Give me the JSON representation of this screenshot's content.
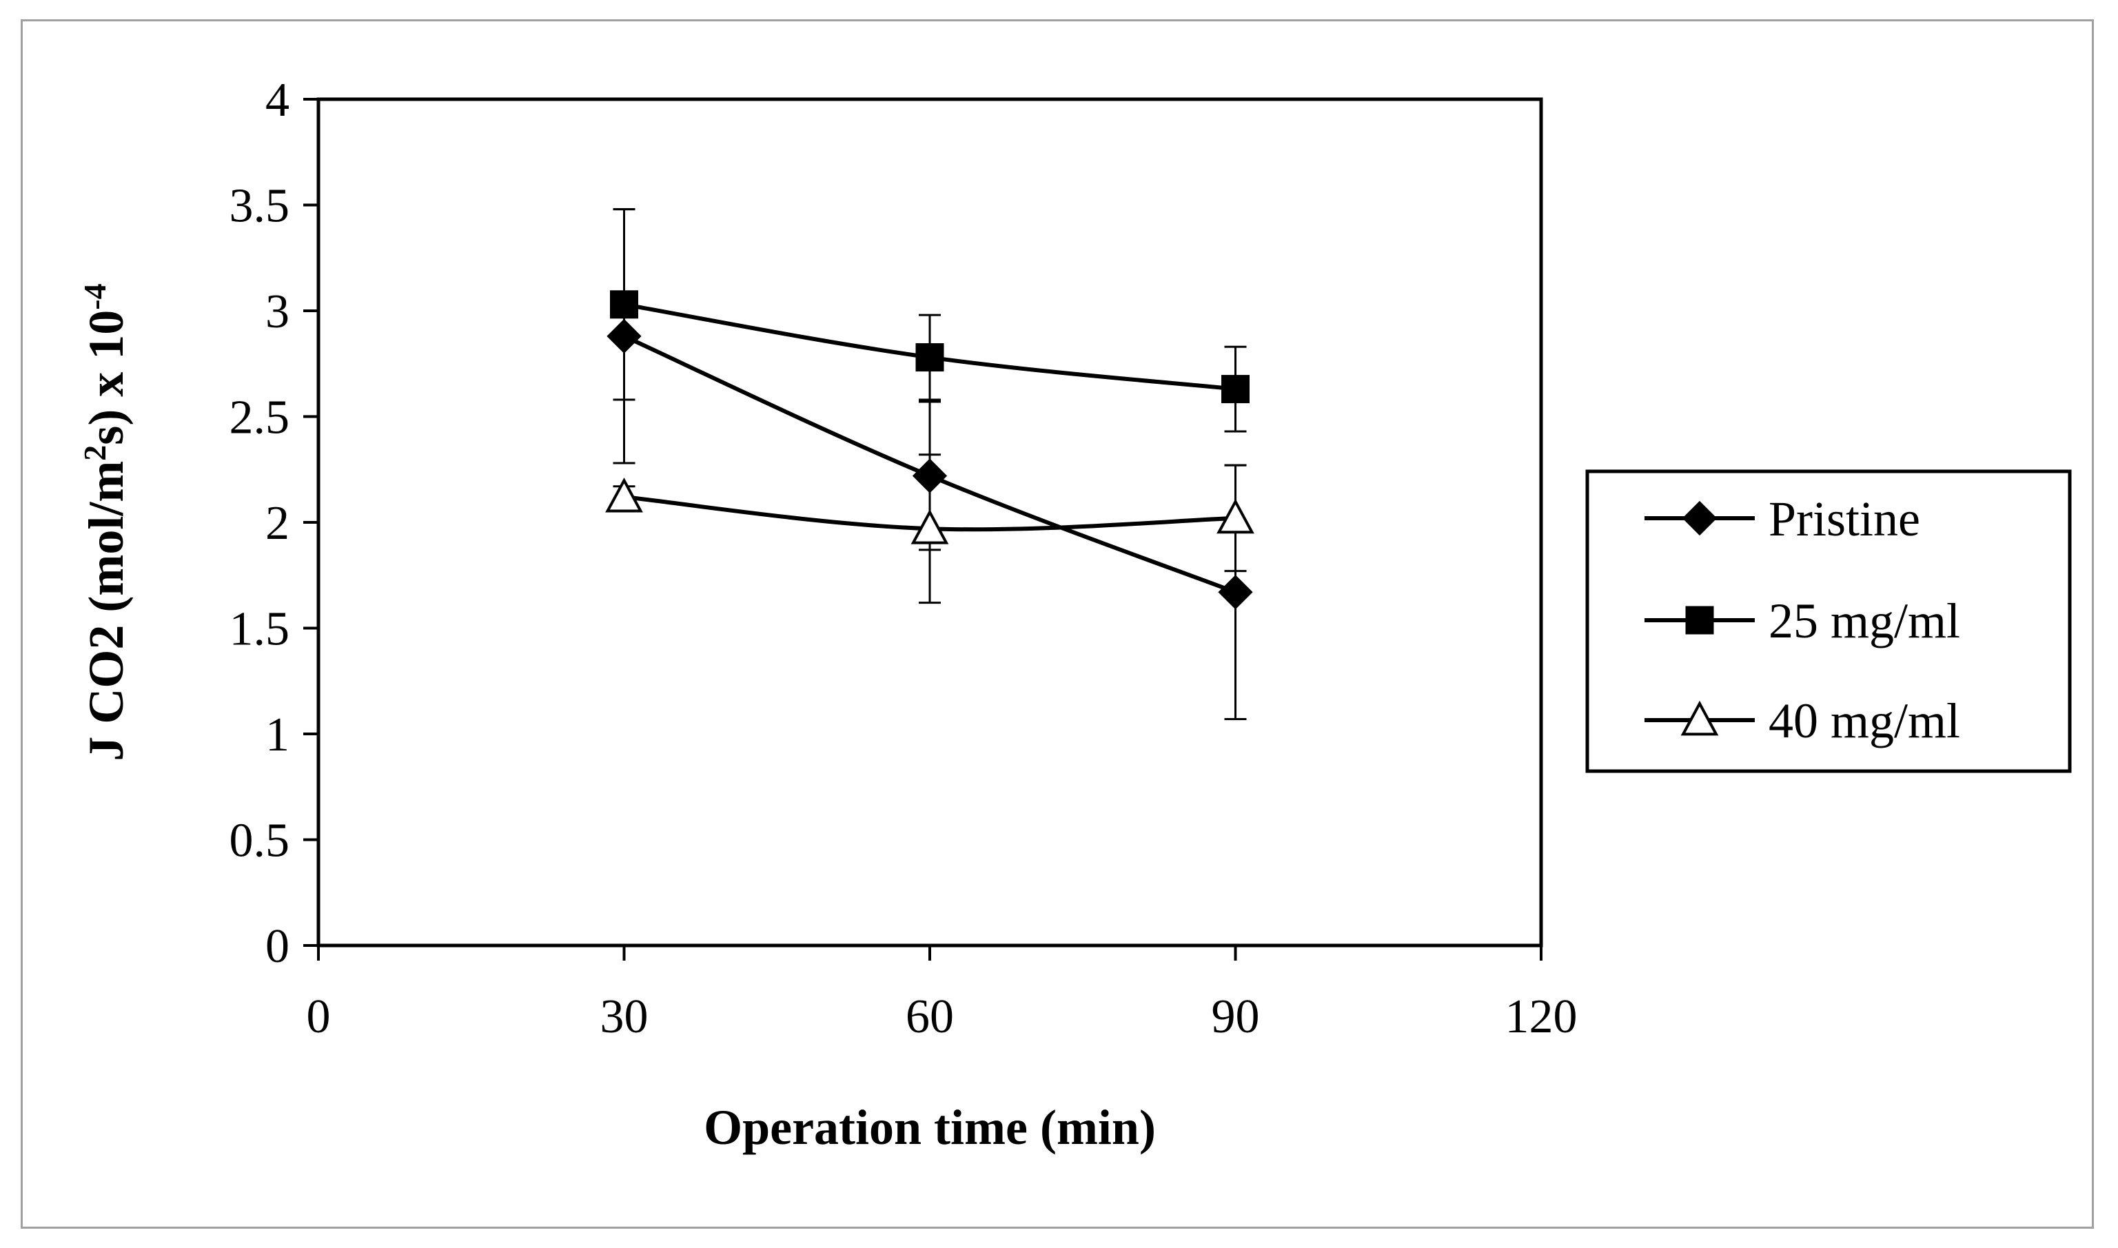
{
  "chart_data": {
    "type": "line",
    "title": "",
    "xlabel": "Operation time (min)",
    "ylabel": {
      "main": "J CO2  (mol/m",
      "sup1": "2",
      "mid": "s) x 10",
      "sup2": "-4"
    },
    "xlim": [
      0,
      120
    ],
    "ylim": [
      0,
      4
    ],
    "xticks": [
      "0",
      "30",
      "60",
      "90",
      "120"
    ],
    "yticks": [
      "0",
      "0.5",
      "1",
      "1.5",
      "2",
      "2.5",
      "3",
      "3.5",
      "4"
    ],
    "grid": false,
    "legend_position": "right",
    "x": [
      30,
      60,
      90
    ],
    "series": [
      {
        "name": "Pristine",
        "marker": "diamond",
        "values": [
          2.88,
          2.22,
          1.67
        ],
        "errors": [
          0.6,
          0.35,
          0.6
        ]
      },
      {
        "name": "25 mg/ml",
        "marker": "square",
        "values": [
          3.03,
          2.78,
          2.63
        ],
        "errors": [
          0.45,
          0.2,
          0.2
        ]
      },
      {
        "name": "40 mg/ml",
        "marker": "triangle",
        "values": [
          2.12,
          1.97,
          2.02
        ],
        "errors": [
          0.05,
          0.35,
          0.25
        ]
      }
    ],
    "colors": {
      "line": "#000000",
      "open_fill": "#ffffff"
    }
  }
}
